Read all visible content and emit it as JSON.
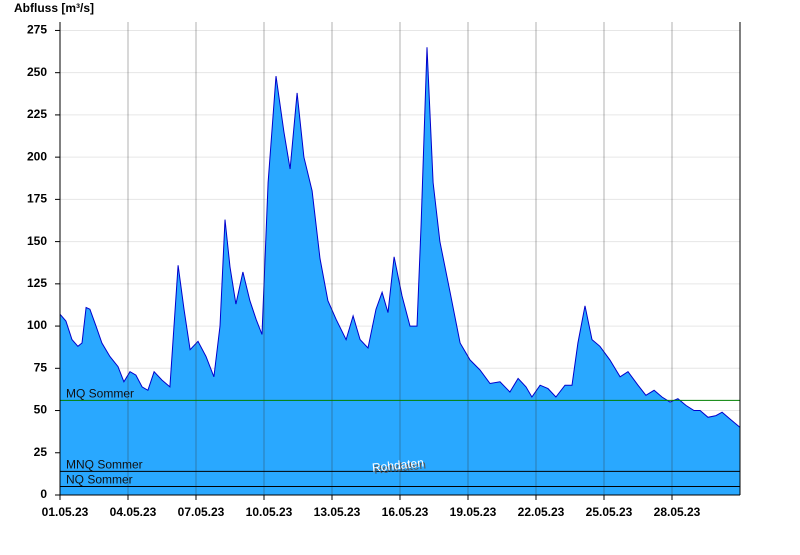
{
  "chart_data": {
    "type": "area",
    "y_label": "Abfluss [m³/s]",
    "watermark": "Rohdaten",
    "color": "#29a8ff",
    "line_color": "#0000cc",
    "grid": true,
    "xlim": [
      0,
      30
    ],
    "ylim": [
      0,
      280
    ],
    "yticks": [
      0,
      25,
      50,
      75,
      100,
      125,
      150,
      175,
      200,
      225,
      250,
      275
    ],
    "xticks": [
      {
        "value": 0,
        "label": "01.05.23"
      },
      {
        "value": 3,
        "label": "04.05.23"
      },
      {
        "value": 6,
        "label": "07.05.23"
      },
      {
        "value": 9,
        "label": "10.05.23"
      },
      {
        "value": 12,
        "label": "13.05.23"
      },
      {
        "value": 15,
        "label": "16.05.23"
      },
      {
        "value": 18,
        "label": "19.05.23"
      },
      {
        "value": 21,
        "label": "22.05.23"
      },
      {
        "value": 24,
        "label": "25.05.23"
      },
      {
        "value": 27,
        "label": "28.05.23"
      }
    ],
    "reference_lines": [
      {
        "name": "MQ Sommer",
        "value": 56,
        "color": "#008000"
      },
      {
        "name": "MNQ Sommer",
        "value": 14,
        "color": "#000000"
      },
      {
        "name": "NQ Sommer",
        "value": 5,
        "color": "#000000"
      }
    ],
    "x": [
      0,
      0.26,
      0.53,
      0.79,
      0.97,
      1.15,
      1.32,
      1.59,
      1.85,
      2.2,
      2.56,
      2.82,
      3.09,
      3.35,
      3.62,
      3.88,
      4.15,
      4.5,
      4.85,
      5.21,
      5.47,
      5.74,
      6.09,
      6.44,
      6.79,
      7.06,
      7.28,
      7.5,
      7.76,
      8.07,
      8.38,
      8.65,
      8.91,
      9.18,
      9.53,
      9.88,
      10.15,
      10.46,
      10.76,
      11.12,
      11.47,
      11.82,
      12.18,
      12.62,
      12.93,
      13.24,
      13.59,
      13.94,
      14.21,
      14.47,
      14.74,
      15.09,
      15.44,
      15.75,
      15.93,
      16.19,
      16.46,
      16.76,
      17.21,
      17.65,
      18.09,
      18.53,
      18.97,
      19.41,
      19.85,
      20.21,
      20.56,
      20.82,
      21.18,
      21.53,
      21.88,
      22.28,
      22.59,
      22.85,
      23.16,
      23.47,
      23.82,
      24.26,
      24.71,
      25.06,
      25.5,
      25.85,
      26.21,
      26.56,
      26.91,
      27.26,
      27.62,
      27.97,
      28.24,
      28.59,
      28.94,
      29.21,
      29.56,
      30
    ],
    "values": [
      107,
      103,
      92,
      88,
      90,
      111,
      110,
      100,
      90,
      82,
      76,
      67,
      73,
      71,
      64,
      62,
      73,
      68,
      64,
      136,
      110,
      86,
      91,
      82,
      70,
      100,
      163,
      135,
      113,
      132,
      115,
      104,
      95,
      185,
      248,
      215,
      193,
      238,
      200,
      180,
      140,
      115,
      104,
      92,
      106,
      92,
      87,
      110,
      120,
      108,
      141,
      118,
      100,
      100,
      160,
      265,
      185,
      150,
      120,
      90,
      80,
      74,
      66,
      67,
      61,
      69,
      64,
      58,
      65,
      63,
      58,
      65,
      65,
      90,
      112,
      92,
      88,
      80,
      70,
      73,
      65,
      59,
      62,
      58,
      55,
      57,
      53,
      50,
      50,
      46,
      47,
      49,
      45,
      40
    ]
  }
}
